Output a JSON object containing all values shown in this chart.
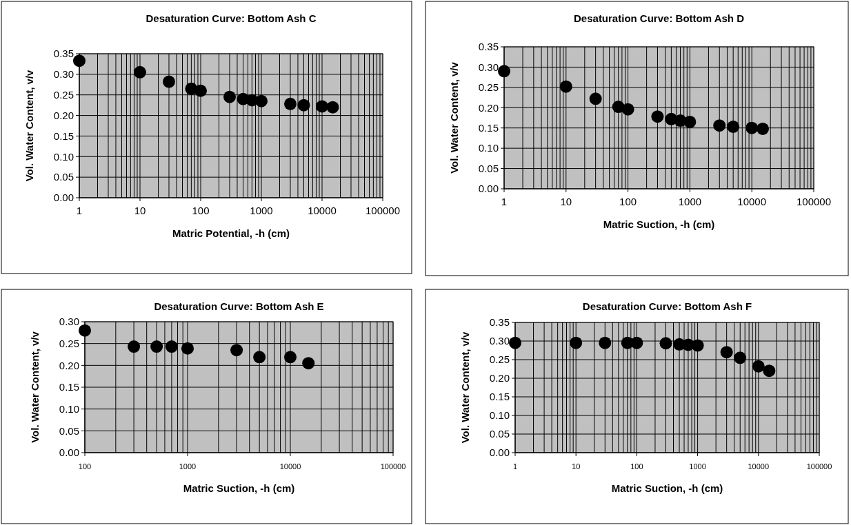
{
  "chart_data": [
    {
      "type": "scatter",
      "title": "Desaturation Curve: Bottom Ash C",
      "xlabel": "Matric Potential, -h (cm)",
      "ylabel": "Vol. Water Content, v/v",
      "log": "x",
      "grid": true,
      "marker": "circle",
      "xlim": [
        1,
        100000
      ],
      "xticks": [
        1,
        10,
        100,
        1000,
        10000,
        100000
      ],
      "ylim": [
        0,
        0.35
      ],
      "yticks": [
        {
          "value": 0,
          "label": "0.00"
        },
        {
          "value": 0.05,
          "label": "0.05"
        },
        {
          "value": 0.1,
          "label": "0.10"
        },
        {
          "value": 0.15,
          "label": "0.15"
        },
        {
          "value": 0.2,
          "label": "0.20"
        },
        {
          "value": 0.25,
          "label": "0.25"
        },
        {
          "value": 0.3,
          "label": "0.30"
        },
        {
          "value": 0.35,
          "label": "0.35"
        }
      ],
      "series": [
        {
          "color": "#000000",
          "x": [
            1,
            10,
            30,
            70,
            100,
            300,
            500,
            700,
            1000,
            3000,
            5000,
            10000,
            15000
          ],
          "values": [
            0.333,
            0.305,
            0.282,
            0.265,
            0.26,
            0.245,
            0.24,
            0.237,
            0.235,
            0.228,
            0.225,
            0.222,
            0.22
          ]
        }
      ]
    },
    {
      "type": "scatter",
      "title": "Desaturation Curve: Bottom Ash D",
      "xlabel": "Matric Suction, -h (cm)",
      "ylabel": "Vol. Water Content, v/v",
      "log": "x",
      "grid": true,
      "marker": "circle",
      "xlim": [
        1,
        100000
      ],
      "xticks": [
        1,
        10,
        100,
        1000,
        10000,
        100000
      ],
      "ylim": [
        0,
        0.35
      ],
      "yticks": [
        {
          "value": 0,
          "label": "0.00"
        },
        {
          "value": 0.05,
          "label": "0.05"
        },
        {
          "value": 0.1,
          "label": "0.10"
        },
        {
          "value": 0.15,
          "label": "0.15"
        },
        {
          "value": 0.2,
          "label": "0.20"
        },
        {
          "value": 0.25,
          "label": "0.25"
        },
        {
          "value": 0.3,
          "label": "0.30"
        },
        {
          "value": 0.35,
          "label": "0.35"
        }
      ],
      "series": [
        {
          "color": "#000000",
          "x": [
            1,
            10,
            30,
            70,
            100,
            300,
            500,
            700,
            1000,
            3000,
            5000,
            10000,
            15000
          ],
          "values": [
            0.29,
            0.252,
            0.222,
            0.202,
            0.196,
            0.178,
            0.172,
            0.168,
            0.165,
            0.156,
            0.153,
            0.15,
            0.148
          ]
        }
      ]
    },
    {
      "type": "scatter",
      "title": "Desaturation Curve: Bottom Ash E",
      "xlabel": "Matric Suction, -h (cm)",
      "ylabel": "Vol. Water Content, v/v",
      "log": "x",
      "grid": true,
      "marker": "circle",
      "xlim": [
        100,
        100000
      ],
      "xticks": [
        100,
        1000,
        10000,
        100000
      ],
      "ylim": [
        0,
        0.3
      ],
      "yticks": [
        {
          "value": 0,
          "label": "0.00"
        },
        {
          "value": 0.05,
          "label": "0.05"
        },
        {
          "value": 0.1,
          "label": "0.10"
        },
        {
          "value": 0.15,
          "label": "0.15"
        },
        {
          "value": 0.2,
          "label": "0.20"
        },
        {
          "value": 0.25,
          "label": "0.25"
        },
        {
          "value": 0.3,
          "label": "0.30"
        }
      ],
      "series": [
        {
          "color": "#000000",
          "x": [
            100,
            300,
            500,
            700,
            1000,
            3000,
            5000,
            10000,
            15000
          ],
          "values": [
            0.28,
            0.243,
            0.243,
            0.243,
            0.239,
            0.235,
            0.219,
            0.219,
            0.205
          ]
        }
      ]
    },
    {
      "type": "scatter",
      "title": "Desaturation Curve: Bottom Ash F",
      "xlabel": "Matric Suction, -h (cm)",
      "ylabel": "Vol. Water Content, v/v",
      "log": "x",
      "grid": true,
      "marker": "circle",
      "xlim": [
        1,
        100000
      ],
      "xticks": [
        1,
        10,
        100,
        1000,
        10000,
        100000
      ],
      "ylim": [
        0,
        0.35
      ],
      "yticks": [
        {
          "value": 0,
          "label": "0.00"
        },
        {
          "value": 0.05,
          "label": "0.05"
        },
        {
          "value": 0.1,
          "label": "0.10"
        },
        {
          "value": 0.15,
          "label": "0.15"
        },
        {
          "value": 0.2,
          "label": "0.20"
        },
        {
          "value": 0.25,
          "label": "0.25"
        },
        {
          "value": 0.3,
          "label": "0.30"
        },
        {
          "value": 0.35,
          "label": "0.35"
        }
      ],
      "series": [
        {
          "color": "#000000",
          "x": [
            1,
            10,
            30,
            70,
            100,
            300,
            500,
            700,
            1000,
            3000,
            5000,
            10000,
            15000
          ],
          "values": [
            0.295,
            0.295,
            0.295,
            0.295,
            0.295,
            0.294,
            0.291,
            0.29,
            0.288,
            0.27,
            0.255,
            0.232,
            0.22
          ]
        }
      ]
    }
  ]
}
